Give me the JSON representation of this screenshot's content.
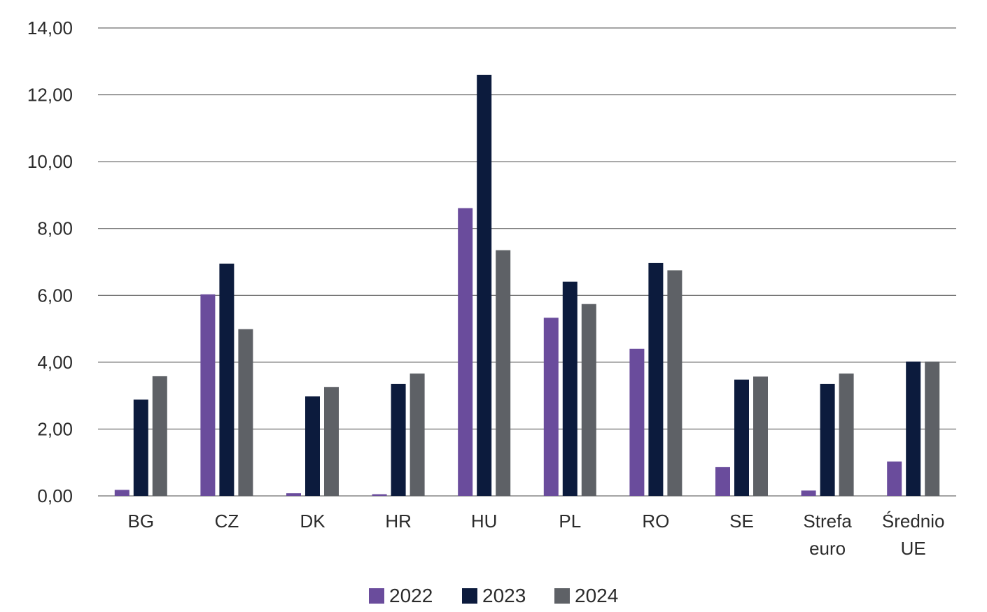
{
  "chart_data": {
    "type": "bar",
    "title": "",
    "xlabel": "",
    "ylabel": "",
    "ylim": [
      0,
      14
    ],
    "yticks": [
      0,
      2,
      4,
      6,
      8,
      10,
      12,
      14
    ],
    "ytick_labels": [
      "0,00",
      "2,00",
      "4,00",
      "6,00",
      "8,00",
      "10,00",
      "12,00",
      "14,00"
    ],
    "grid": true,
    "legend_position": "bottom",
    "categories": [
      [
        "BG"
      ],
      [
        "CZ"
      ],
      [
        "DK"
      ],
      [
        "HR"
      ],
      [
        "HU"
      ],
      [
        "PL"
      ],
      [
        "RO"
      ],
      [
        "SE"
      ],
      [
        "Strefa",
        "euro"
      ],
      [
        "Średnio",
        "UE"
      ]
    ],
    "series": [
      {
        "name": "2022",
        "color": "#6a4c9c",
        "values": [
          0.18,
          6.03,
          0.08,
          0.05,
          8.61,
          5.33,
          4.4,
          0.86,
          0.16,
          1.03
        ]
      },
      {
        "name": "2023",
        "color": "#0c1b3d",
        "values": [
          2.88,
          6.95,
          2.98,
          3.35,
          12.6,
          6.41,
          6.97,
          3.48,
          3.35,
          4.02
        ]
      },
      {
        "name": "2024",
        "color": "#5e6166",
        "values": [
          3.58,
          4.99,
          3.26,
          3.66,
          7.35,
          5.74,
          6.75,
          3.57,
          3.66,
          4.02
        ]
      }
    ]
  }
}
